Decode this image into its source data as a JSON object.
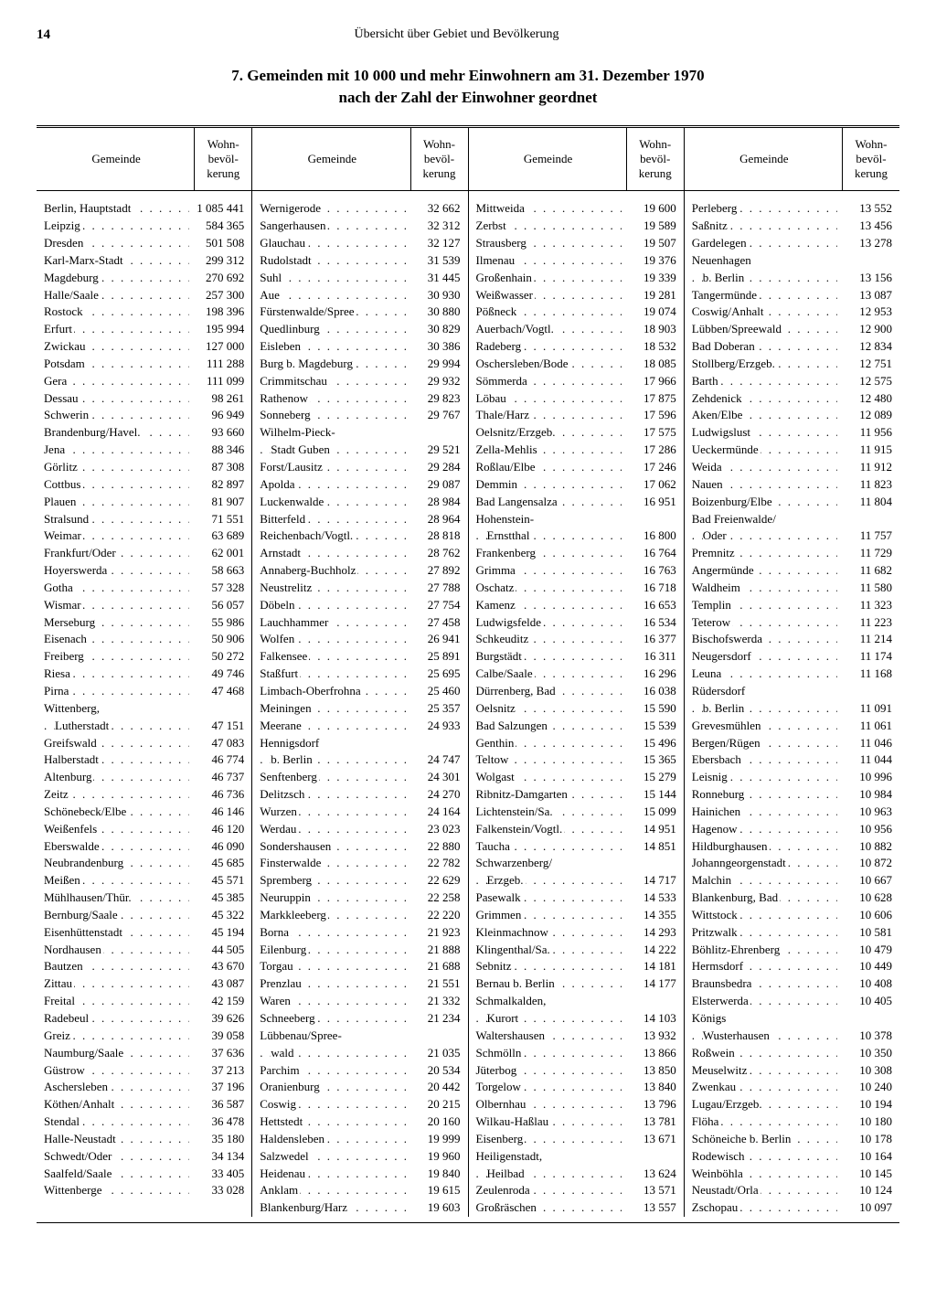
{
  "page_number": "14",
  "running_head": "Übersicht über Gebiet und Bevölkerung",
  "title_line1": "7. Gemeinden mit 10 000 und mehr Einwohnern am 31. Dezember 1970",
  "title_line2": "nach der Zahl der Einwohner geordnet",
  "header_gemeinde": "Gemeinde",
  "header_pop": "Wohn-\nbevöl-\nkerung",
  "columns": [
    [
      {
        "n": "Berlin, Hauptstadt",
        "p": "1 085 441"
      },
      {
        "n": "Leipzig",
        "p": "584 365"
      },
      {
        "n": "Dresden",
        "p": "501 508"
      },
      {
        "n": "Karl-Marx-Stadt",
        "p": "299 312"
      },
      {
        "n": "Magdeburg",
        "p": "270 692"
      },
      {
        "n": "Halle/Saale",
        "p": "257 300"
      },
      {
        "n": "Rostock",
        "p": "198 396"
      },
      {
        "n": "Erfurt",
        "p": "195 994"
      },
      {
        "n": "Zwickau",
        "p": "127 000"
      },
      {
        "n": "Potsdam",
        "p": "111 288"
      },
      {
        "n": "Gera",
        "p": "111 099"
      },
      {
        "n": "Dessau",
        "p": "98 261"
      },
      {
        "n": "Schwerin",
        "p": "96 949"
      },
      {
        "n": "Brandenburg/Havel.",
        "p": "93 660"
      },
      {
        "n": "Jena",
        "p": "88 346"
      },
      {
        "n": "Görlitz",
        "p": "87 308"
      },
      {
        "n": "Cottbus",
        "p": "82 897"
      },
      {
        "n": "Plauen",
        "p": "81 907"
      },
      {
        "n": "Stralsund",
        "p": "71 551"
      },
      {
        "n": "Weimar",
        "p": "63 689"
      },
      {
        "n": "Frankfurt/Oder",
        "p": "62 001"
      },
      {
        "n": "Hoyerswerda",
        "p": "58 663"
      },
      {
        "n": "Gotha",
        "p": "57 328"
      },
      {
        "n": "Wismar",
        "p": "56 057"
      },
      {
        "n": "Merseburg",
        "p": "55 986"
      },
      {
        "n": "Eisenach",
        "p": "50 906"
      },
      {
        "n": "Freiberg",
        "p": "50 272"
      },
      {
        "n": "Riesa",
        "p": "49 746"
      },
      {
        "n": "Pirna",
        "p": "47 468"
      },
      {
        "n": "Wittenberg,",
        "p": "",
        "nodots": true
      },
      {
        "n": "Lutherstadt",
        "p": "47 151",
        "indent": true
      },
      {
        "n": "Greifswald",
        "p": "47 083"
      },
      {
        "n": "Halberstadt",
        "p": "46 774"
      },
      {
        "n": "Altenburg",
        "p": "46 737"
      },
      {
        "n": "Zeitz",
        "p": "46 736"
      },
      {
        "n": "Schönebeck/Elbe",
        "p": "46 146"
      },
      {
        "n": "Weißenfels",
        "p": "46 120"
      },
      {
        "n": "Eberswalde",
        "p": "46 090"
      },
      {
        "n": "Neubrandenburg",
        "p": "45 685"
      },
      {
        "n": "Meißen",
        "p": "45 571"
      },
      {
        "n": "Mühlhausen/Thür.",
        "p": "45 385"
      },
      {
        "n": "Bernburg/Saale",
        "p": "45 322"
      },
      {
        "n": "Eisenhüttenstadt",
        "p": "45 194"
      },
      {
        "n": "Nordhausen",
        "p": "44 505"
      },
      {
        "n": "Bautzen",
        "p": "43 670"
      },
      {
        "n": "Zittau",
        "p": "43 087"
      },
      {
        "n": "Freital",
        "p": "42 159"
      },
      {
        "n": "Radebeul",
        "p": "39 626"
      },
      {
        "n": "Greiz",
        "p": "39 058"
      },
      {
        "n": "Naumburg/Saale",
        "p": "37 636"
      },
      {
        "n": "Güstrow",
        "p": "37 213"
      },
      {
        "n": "Aschersleben",
        "p": "37 196"
      },
      {
        "n": "Köthen/Anhalt",
        "p": "36 587"
      },
      {
        "n": "Stendal",
        "p": "36 478"
      },
      {
        "n": "Halle-Neustadt",
        "p": "35 180"
      },
      {
        "n": "Schwedt/Oder",
        "p": "34 134"
      },
      {
        "n": "Saalfeld/Saale",
        "p": "33 405"
      },
      {
        "n": "Wittenberge",
        "p": "33 028"
      }
    ],
    [
      {
        "n": "Wernigerode",
        "p": "32 662"
      },
      {
        "n": "Sangerhausen",
        "p": "32 312"
      },
      {
        "n": "Glauchau",
        "p": "32 127"
      },
      {
        "n": "Rudolstadt",
        "p": "31 539"
      },
      {
        "n": "Suhl",
        "p": "31 445"
      },
      {
        "n": "Aue",
        "p": "30 930"
      },
      {
        "n": "Fürstenwalde/Spree",
        "p": "30 880"
      },
      {
        "n": "Quedlinburg",
        "p": "30 829"
      },
      {
        "n": "Eisleben",
        "p": "30 386"
      },
      {
        "n": "Burg b. Magdeburg",
        "p": "29 994"
      },
      {
        "n": "Crimmitschau",
        "p": "29 932"
      },
      {
        "n": "Rathenow",
        "p": "29 823"
      },
      {
        "n": "Sonneberg",
        "p": "29 767"
      },
      {
        "n": "Wilhelm-Pieck-",
        "p": "",
        "nodots": true
      },
      {
        "n": "Stadt Guben",
        "p": "29 521",
        "indent": true
      },
      {
        "n": "Forst/Lausitz",
        "p": "29 284"
      },
      {
        "n": "Apolda",
        "p": "29 087"
      },
      {
        "n": "Luckenwalde",
        "p": "28 984"
      },
      {
        "n": "Bitterfeld",
        "p": "28 964"
      },
      {
        "n": "Reichenbach/Vogtl.",
        "p": "28 818"
      },
      {
        "n": "Arnstadt",
        "p": "28 762"
      },
      {
        "n": "Annaberg-Buchholz",
        "p": "27 892"
      },
      {
        "n": "Neustrelitz",
        "p": "27 788"
      },
      {
        "n": "Döbeln",
        "p": "27 754"
      },
      {
        "n": "Lauchhammer",
        "p": "27 458"
      },
      {
        "n": "Wolfen",
        "p": "26 941"
      },
      {
        "n": "Falkensee",
        "p": "25 891"
      },
      {
        "n": "Staßfurt",
        "p": "25 695"
      },
      {
        "n": "Limbach-Oberfrohna",
        "p": "25 460"
      },
      {
        "n": "Meiningen",
        "p": "25 357"
      },
      {
        "n": "Meerane",
        "p": "24 933"
      },
      {
        "n": "Hennigsdorf",
        "p": "",
        "nodots": true
      },
      {
        "n": "b. Berlin",
        "p": "24 747",
        "indent": true
      },
      {
        "n": "Senftenberg",
        "p": "24 301"
      },
      {
        "n": "Delitzsch",
        "p": "24 270"
      },
      {
        "n": "Wurzen",
        "p": "24 164"
      },
      {
        "n": "Werdau",
        "p": "23 023"
      },
      {
        "n": "Sondershausen",
        "p": "22 880"
      },
      {
        "n": "Finsterwalde",
        "p": "22 782"
      },
      {
        "n": "Spremberg",
        "p": "22 629"
      },
      {
        "n": "Neuruppin",
        "p": "22 258"
      },
      {
        "n": "Markkleeberg",
        "p": "22 220"
      },
      {
        "n": "Borna",
        "p": "21 923"
      },
      {
        "n": "Eilenburg",
        "p": "21 888"
      },
      {
        "n": "Torgau",
        "p": "21 688"
      },
      {
        "n": "Prenzlau",
        "p": "21 551"
      },
      {
        "n": "Waren",
        "p": "21 332"
      },
      {
        "n": "Schneeberg",
        "p": "21 234"
      },
      {
        "n": "Lübbenau/Spree-",
        "p": "",
        "nodots": true
      },
      {
        "n": "wald",
        "p": "21 035",
        "indent": true
      },
      {
        "n": "Parchim",
        "p": "20 534"
      },
      {
        "n": "Oranienburg",
        "p": "20 442"
      },
      {
        "n": "Coswig",
        "p": "20 215"
      },
      {
        "n": "Hettstedt",
        "p": "20 160"
      },
      {
        "n": "Haldensleben",
        "p": "19 999"
      },
      {
        "n": "Salzwedel",
        "p": "19 960"
      },
      {
        "n": "Heidenau",
        "p": "19 840"
      },
      {
        "n": "Anklam",
        "p": "19 615"
      },
      {
        "n": "Blankenburg/Harz",
        "p": "19 603"
      }
    ],
    [
      {
        "n": "Mittweida",
        "p": "19 600"
      },
      {
        "n": "Zerbst",
        "p": "19 589"
      },
      {
        "n": "Strausberg",
        "p": "19 507"
      },
      {
        "n": "Ilmenau",
        "p": "19 376"
      },
      {
        "n": "Großenhain",
        "p": "19 339"
      },
      {
        "n": "Weißwasser",
        "p": "19 281"
      },
      {
        "n": "Pößneck",
        "p": "19 074"
      },
      {
        "n": "Auerbach/Vogtl.",
        "p": "18 903"
      },
      {
        "n": "Radeberg",
        "p": "18 532"
      },
      {
        "n": "Oschersleben/Bode",
        "p": "18 085"
      },
      {
        "n": "Sömmerda",
        "p": "17 966"
      },
      {
        "n": "Löbau",
        "p": "17 875"
      },
      {
        "n": "Thale/Harz",
        "p": "17 596"
      },
      {
        "n": "Oelsnitz/Erzgeb.",
        "p": "17 575"
      },
      {
        "n": "Zella-Mehlis",
        "p": "17 286"
      },
      {
        "n": "Roßlau/Elbe",
        "p": "17 246"
      },
      {
        "n": "Demmin",
        "p": "17 062"
      },
      {
        "n": "Bad Langensalza",
        "p": "16 951"
      },
      {
        "n": "Hohenstein-",
        "p": "",
        "nodots": true
      },
      {
        "n": "Ernstthal",
        "p": "16 800",
        "indent": true
      },
      {
        "n": "Frankenberg",
        "p": "16 764"
      },
      {
        "n": "Grimma",
        "p": "16 763"
      },
      {
        "n": "Oschatz",
        "p": "16 718"
      },
      {
        "n": "Kamenz",
        "p": "16 653"
      },
      {
        "n": "Ludwigsfelde",
        "p": "16 534"
      },
      {
        "n": "Schkeuditz",
        "p": "16 377"
      },
      {
        "n": "Burgstädt",
        "p": "16 311"
      },
      {
        "n": "Calbe/Saale",
        "p": "16 296"
      },
      {
        "n": "Dürrenberg, Bad",
        "p": "16 038"
      },
      {
        "n": "Oelsnitz",
        "p": "15 590"
      },
      {
        "n": "Bad Salzungen",
        "p": "15 539"
      },
      {
        "n": "Genthin",
        "p": "15 496"
      },
      {
        "n": "Teltow",
        "p": "15 365"
      },
      {
        "n": "Wolgast",
        "p": "15 279"
      },
      {
        "n": "Ribnitz-Damgarten",
        "p": "15 144"
      },
      {
        "n": "Lichtenstein/Sa.",
        "p": "15 099"
      },
      {
        "n": "Falkenstein/Vogtl.",
        "p": "14 951"
      },
      {
        "n": "Taucha",
        "p": "14 851"
      },
      {
        "n": "Schwarzenberg/",
        "p": "",
        "nodots": true
      },
      {
        "n": "Erzgeb.",
        "p": "14 717",
        "indent": true
      },
      {
        "n": "Pasewalk",
        "p": "14 533"
      },
      {
        "n": "Grimmen",
        "p": "14 355"
      },
      {
        "n": "Kleinmachnow",
        "p": "14 293"
      },
      {
        "n": "Klingenthal/Sa.",
        "p": "14 222"
      },
      {
        "n": "Sebnitz",
        "p": "14 181"
      },
      {
        "n": "Bernau b. Berlin",
        "p": "14 177"
      },
      {
        "n": "Schmalkalden,",
        "p": "",
        "nodots": true
      },
      {
        "n": "Kurort",
        "p": "14 103",
        "indent": true
      },
      {
        "n": "Waltershausen",
        "p": "13 932"
      },
      {
        "n": "Schmölln",
        "p": "13 866"
      },
      {
        "n": "Jüterbog",
        "p": "13 850"
      },
      {
        "n": "Torgelow",
        "p": "13 840"
      },
      {
        "n": "Olbernhau",
        "p": "13 796"
      },
      {
        "n": "Wilkau-Haßlau",
        "p": "13 781"
      },
      {
        "n": "Eisenberg",
        "p": "13 671"
      },
      {
        "n": "Heiligenstadt,",
        "p": "",
        "nodots": true
      },
      {
        "n": "Heilbad",
        "p": "13 624",
        "indent": true
      },
      {
        "n": "Zeulenroda",
        "p": "13 571"
      },
      {
        "n": "Großräschen",
        "p": "13 557"
      }
    ],
    [
      {
        "n": "Perleberg",
        "p": "13 552"
      },
      {
        "n": "Saßnitz",
        "p": "13 456"
      },
      {
        "n": "Gardelegen",
        "p": "13 278"
      },
      {
        "n": "Neuenhagen",
        "p": "",
        "nodots": true
      },
      {
        "n": "b. Berlin",
        "p": "13 156",
        "indent": true
      },
      {
        "n": "Tangermünde",
        "p": "13 087"
      },
      {
        "n": "Coswig/Anhalt",
        "p": "12 953"
      },
      {
        "n": "Lübben/Spreewald",
        "p": "12 900"
      },
      {
        "n": "Bad Doberan",
        "p": "12 834"
      },
      {
        "n": "Stollberg/Erzgeb.",
        "p": "12 751"
      },
      {
        "n": "Barth",
        "p": "12 575"
      },
      {
        "n": "Zehdenick",
        "p": "12 480"
      },
      {
        "n": "Aken/Elbe",
        "p": "12 089"
      },
      {
        "n": "Ludwigslust",
        "p": "11 956"
      },
      {
        "n": "Ueckermünde",
        "p": "11 915"
      },
      {
        "n": "Weida",
        "p": "11 912"
      },
      {
        "n": "Nauen",
        "p": "11 823"
      },
      {
        "n": "Boizenburg/Elbe",
        "p": "11 804"
      },
      {
        "n": "Bad Freienwalde/",
        "p": "",
        "nodots": true
      },
      {
        "n": "Oder",
        "p": "11 757",
        "indent": true
      },
      {
        "n": "Premnitz",
        "p": "11 729"
      },
      {
        "n": "Angermünde",
        "p": "11 682"
      },
      {
        "n": "Waldheim",
        "p": "11 580"
      },
      {
        "n": "Templin",
        "p": "11 323"
      },
      {
        "n": "Teterow",
        "p": "11 223"
      },
      {
        "n": "Bischofswerda",
        "p": "11 214"
      },
      {
        "n": "Neugersdorf",
        "p": "11 174"
      },
      {
        "n": "Leuna",
        "p": "11 168"
      },
      {
        "n": "Rüdersdorf",
        "p": "",
        "nodots": true
      },
      {
        "n": "b. Berlin",
        "p": "11 091",
        "indent": true
      },
      {
        "n": "Grevesmühlen",
        "p": "11 061"
      },
      {
        "n": "Bergen/Rügen",
        "p": "11 046"
      },
      {
        "n": "Ebersbach",
        "p": "11 044"
      },
      {
        "n": "Leisnig",
        "p": "10 996"
      },
      {
        "n": "Ronneburg",
        "p": "10 984"
      },
      {
        "n": "Hainichen",
        "p": "10 963"
      },
      {
        "n": "Hagenow",
        "p": "10 956"
      },
      {
        "n": "Hildburghausen",
        "p": "10 882"
      },
      {
        "n": "Johanngeorgenstadt",
        "p": "10 872"
      },
      {
        "n": "Malchin",
        "p": "10 667"
      },
      {
        "n": "Blankenburg, Bad",
        "p": "10 628"
      },
      {
        "n": "Wittstock",
        "p": "10 606"
      },
      {
        "n": "Pritzwalk",
        "p": "10 581"
      },
      {
        "n": "Böhlitz-Ehrenberg",
        "p": "10 479"
      },
      {
        "n": "Hermsdorf",
        "p": "10 449"
      },
      {
        "n": "Braunsbedra",
        "p": "10 408"
      },
      {
        "n": "Elsterwerda",
        "p": "10 405"
      },
      {
        "n": "Königs",
        "p": "",
        "nodots": true
      },
      {
        "n": "Wusterhausen",
        "p": "10 378",
        "indent": true
      },
      {
        "n": "Roßwein",
        "p": "10 350"
      },
      {
        "n": "Meuselwitz",
        "p": "10 308"
      },
      {
        "n": "Zwenkau",
        "p": "10 240"
      },
      {
        "n": "Lugau/Erzgeb.",
        "p": "10 194"
      },
      {
        "n": "Flöha",
        "p": "10 180"
      },
      {
        "n": "Schöneiche b. Berlin",
        "p": "10 178"
      },
      {
        "n": "Rodewisch",
        "p": "10 164"
      },
      {
        "n": "Weinböhla",
        "p": "10 145"
      },
      {
        "n": "Neustadt/Orla",
        "p": "10 124"
      },
      {
        "n": "Zschopau",
        "p": "10 097"
      }
    ]
  ]
}
